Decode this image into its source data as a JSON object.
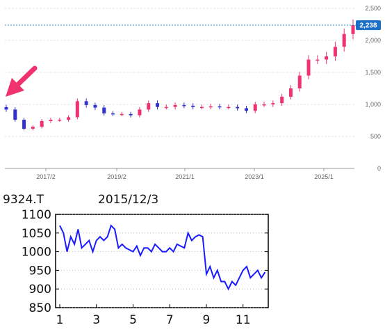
{
  "chart_data": [
    {
      "type": "candlestick",
      "y_ticks": [
        0,
        500,
        1000,
        1500,
        2000,
        2500
      ],
      "y_tick_labels": [
        "0",
        "500",
        "1,000",
        "1,500",
        "2,000",
        "2,500"
      ],
      "x_tick_labels": [
        "2017/2",
        "2019/2",
        "2021/1",
        "2023/1",
        "2025/1"
      ],
      "ylim": [
        0,
        2500
      ],
      "last_value": 2238,
      "last_value_label": "2,238",
      "grid": true,
      "arrow": {
        "direction": "down-left",
        "color": "#f0336e"
      },
      "colors": {
        "up": "#f0336e",
        "down": "#3333cc",
        "price_line": "#2a8fd0",
        "badge": "#1b6fc7"
      },
      "x": [
        "2016-01",
        "2016-04",
        "2016-07",
        "2016-10",
        "2017-01",
        "2017-04",
        "2017-07",
        "2017-10",
        "2018-01",
        "2018-04",
        "2018-07",
        "2018-10",
        "2019-01",
        "2019-04",
        "2019-07",
        "2019-10",
        "2020-01",
        "2020-04",
        "2020-07",
        "2020-10",
        "2021-01",
        "2021-04",
        "2021-07",
        "2021-10",
        "2022-01",
        "2022-04",
        "2022-07",
        "2022-10",
        "2023-01",
        "2023-04",
        "2023-07",
        "2023-10",
        "2024-01",
        "2024-04",
        "2024-07",
        "2024-10",
        "2025-01",
        "2025-04",
        "2025-07",
        "2025-10"
      ],
      "values": [
        920,
        760,
        620,
        650,
        740,
        760,
        760,
        800,
        1050,
        990,
        950,
        860,
        850,
        850,
        830,
        920,
        1020,
        960,
        960,
        990,
        980,
        960,
        960,
        970,
        960,
        960,
        940,
        900,
        1000,
        1000,
        1020,
        1120,
        1250,
        1450,
        1700,
        1700,
        1750,
        1900,
        2100,
        2238
      ]
    },
    {
      "type": "line",
      "title": "9324.T",
      "subtitle": "2015/12/3",
      "y_ticks": [
        850,
        900,
        950,
        1000,
        1050,
        1100
      ],
      "x_tick_labels": [
        "1",
        "3",
        "5",
        "7",
        "9",
        "11"
      ],
      "ylim": [
        850,
        1100
      ],
      "xlim": [
        1,
        12.3
      ],
      "line_color": "#1a1aff",
      "x": [
        1,
        1.2,
        1.4,
        1.6,
        1.8,
        2,
        2.2,
        2.4,
        2.6,
        2.8,
        3,
        3.2,
        3.4,
        3.6,
        3.8,
        4,
        4.2,
        4.4,
        4.6,
        4.8,
        5,
        5.2,
        5.4,
        5.6,
        5.8,
        6,
        6.2,
        6.4,
        6.6,
        6.8,
        7,
        7.2,
        7.4,
        7.6,
        7.8,
        8,
        8.2,
        8.4,
        8.6,
        8.8,
        9,
        9.2,
        9.4,
        9.6,
        9.8,
        10,
        10.2,
        10.4,
        10.6,
        10.8,
        11,
        11.2,
        11.4,
        11.6,
        11.8,
        12,
        12.2
      ],
      "values": [
        1070,
        1050,
        1000,
        1040,
        1020,
        1060,
        1010,
        1020,
        1030,
        1000,
        1030,
        1040,
        1030,
        1040,
        1070,
        1060,
        1010,
        1020,
        1010,
        1005,
        1000,
        1015,
        990,
        1010,
        1010,
        1000,
        1020,
        1010,
        1000,
        1000,
        1010,
        1000,
        1020,
        1015,
        1010,
        1050,
        1030,
        1040,
        1045,
        1040,
        940,
        960,
        930,
        950,
        920,
        920,
        900,
        920,
        910,
        930,
        950,
        960,
        930,
        940,
        950,
        930,
        945
      ]
    }
  ]
}
